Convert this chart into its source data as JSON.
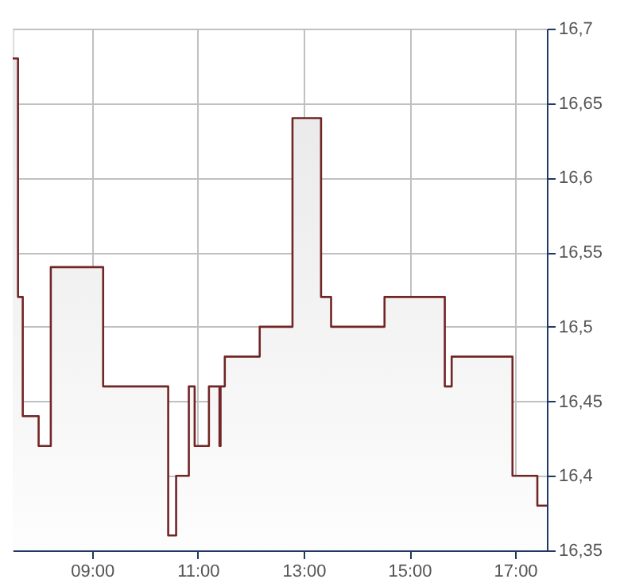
{
  "chart_data": {
    "type": "area",
    "x": [
      7.5,
      7.6,
      7.6,
      7.69,
      7.69,
      7.99,
      7.99,
      8.22,
      8.22,
      9.21,
      9.21,
      10.44,
      10.44,
      10.59,
      10.59,
      10.83,
      10.83,
      10.94,
      10.94,
      11.21,
      11.21,
      11.41,
      11.41,
      11.43,
      11.43,
      11.51,
      11.51,
      12.17,
      12.17,
      12.79,
      12.79,
      13.33,
      13.33,
      13.52,
      13.52,
      14.53,
      14.53,
      15.67,
      15.67,
      15.8,
      15.8,
      16.95,
      16.95,
      17.42,
      17.42,
      17.6
    ],
    "series": [
      {
        "color": "#722525",
        "values": [
          16.68,
          16.68,
          16.52,
          16.52,
          16.44,
          16.44,
          16.42,
          16.42,
          16.54,
          16.54,
          16.46,
          16.46,
          16.36,
          16.36,
          16.4,
          16.4,
          16.46,
          16.46,
          16.42,
          16.42,
          16.46,
          16.46,
          16.42,
          16.42,
          16.46,
          16.46,
          16.48,
          16.48,
          16.5,
          16.5,
          16.64,
          16.64,
          16.52,
          16.52,
          16.5,
          16.5,
          16.52,
          16.52,
          16.46,
          16.46,
          16.48,
          16.48,
          16.4,
          16.4,
          16.38,
          16.38
        ]
      }
    ],
    "xlim": [
      7.5,
      17.6
    ],
    "xticks": [
      {
        "value": 9,
        "label": "09:00"
      },
      {
        "value": 11,
        "label": "11:00"
      },
      {
        "value": 13,
        "label": "13:00"
      },
      {
        "value": 15,
        "label": "15:00"
      },
      {
        "value": 17,
        "label": "17:00"
      }
    ],
    "ylim": [
      16.35,
      16.7
    ],
    "yticks": [
      {
        "value": 16.35,
        "label": "16,35"
      },
      {
        "value": 16.4,
        "label": "16,4"
      },
      {
        "value": 16.45,
        "label": "16,45"
      },
      {
        "value": 16.5,
        "label": "16,5"
      },
      {
        "value": 16.55,
        "label": "16,55"
      },
      {
        "value": 16.6,
        "label": "16,6"
      },
      {
        "value": 16.65,
        "label": "16,65"
      },
      {
        "value": 16.7,
        "label": "16,7"
      }
    ],
    "grid": true,
    "legend": false,
    "marker": "none",
    "line_style": "solid"
  }
}
